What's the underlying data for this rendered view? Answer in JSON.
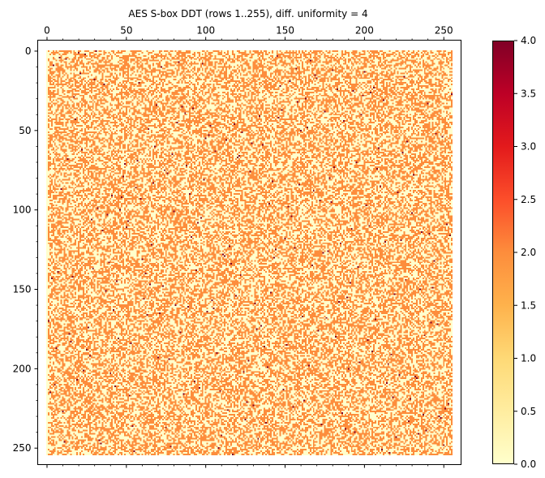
{
  "chart_data": {
    "type": "heatmap",
    "title": "AES S-box DDT (rows 1..255), diff. uniformity = 4",
    "x_tick_labels": [
      "0",
      "50",
      "100",
      "150",
      "200",
      "250"
    ],
    "x_ticks": [
      0,
      50,
      100,
      150,
      200,
      250
    ],
    "x_axis_position": "top",
    "xlim": [
      -0.5,
      255.5
    ],
    "y_tick_labels": [
      "0",
      "50",
      "100",
      "150",
      "200",
      "250"
    ],
    "y_ticks": [
      0,
      50,
      100,
      150,
      200,
      250
    ],
    "ylim": [
      254.5,
      -0.5
    ],
    "rows": 255,
    "columns": 256,
    "row_labels_start": 1,
    "data_description": "Difference distribution table of the AES S-box for input differences 1..255; every entry is 0, 2 or 4 (roughly half 0, half 2, a single 4 per row).",
    "value_levels": [
      0,
      2,
      4
    ],
    "colorbar": {
      "colormap": "YlOrRd",
      "vmin": 0,
      "vmax": 4,
      "tick_labels": [
        "0.0",
        "0.5",
        "1.0",
        "1.5",
        "2.0",
        "2.5",
        "3.0",
        "3.5",
        "4.0"
      ],
      "ticks": [
        0,
        0.5,
        1,
        1.5,
        2,
        2.5,
        3,
        3.5,
        4
      ],
      "stops": [
        "#ffffcc",
        "#ffeda0",
        "#fed976",
        "#feb24c",
        "#fd8d3c",
        "#fc4e2a",
        "#e31a1c",
        "#bd0026",
        "#800026"
      ]
    },
    "grid": false
  }
}
